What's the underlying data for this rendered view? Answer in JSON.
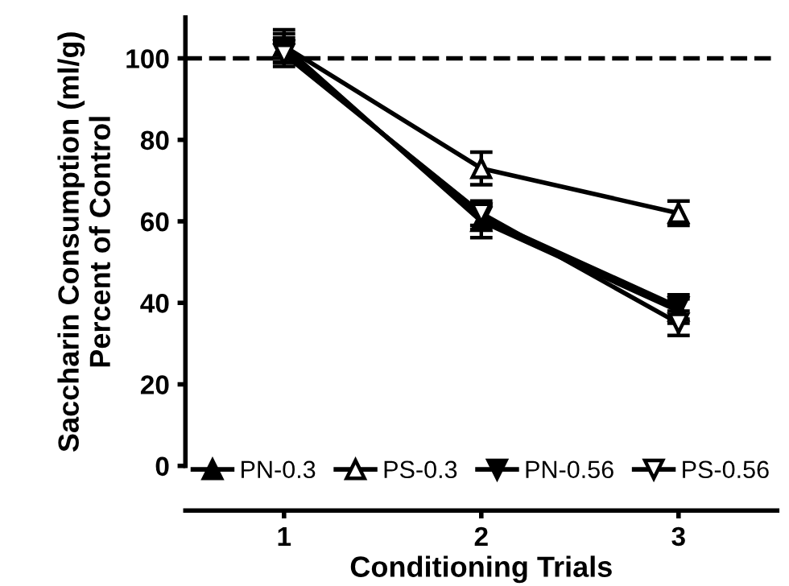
{
  "chart_data": {
    "type": "line",
    "xlabel": "Conditioning Trials",
    "ylabel": "Saccharin Consumption (ml/g)\nPercent of Control",
    "x": [
      1,
      2,
      3
    ],
    "xlim": [
      0.5,
      3.5
    ],
    "xticks": [
      1,
      2,
      3
    ],
    "ylim": [
      0,
      110
    ],
    "yticks": [
      0,
      20,
      40,
      60,
      80,
      100
    ],
    "series": [
      {
        "name": "PN-0.3",
        "color": "#000000",
        "marker": "triangle",
        "values": [
          103,
          60,
          38
        ],
        "errors": [
          4,
          4,
          3
        ]
      },
      {
        "name": "PS-0.3",
        "color": "#000000",
        "marker": "triangle",
        "values": [
          103,
          73,
          62
        ],
        "errors": [
          3,
          4,
          3
        ]
      },
      {
        "name": "PN-0.56",
        "color": "#000000",
        "marker": "triangle_down",
        "values": [
          102,
          61,
          39
        ],
        "errors": [
          3,
          3,
          3
        ]
      },
      {
        "name": "PS-0.56",
        "color": "#000000",
        "marker": "triangle_down",
        "values": [
          101,
          62,
          35
        ],
        "errors": [
          3,
          3,
          3
        ]
      }
    ],
    "ref_lines": [
      {
        "axis": "y",
        "value": 100,
        "label": null,
        "line_style": "dashed"
      }
    ],
    "legend": "bottom",
    "grid": false,
    "line_style": "solid"
  }
}
